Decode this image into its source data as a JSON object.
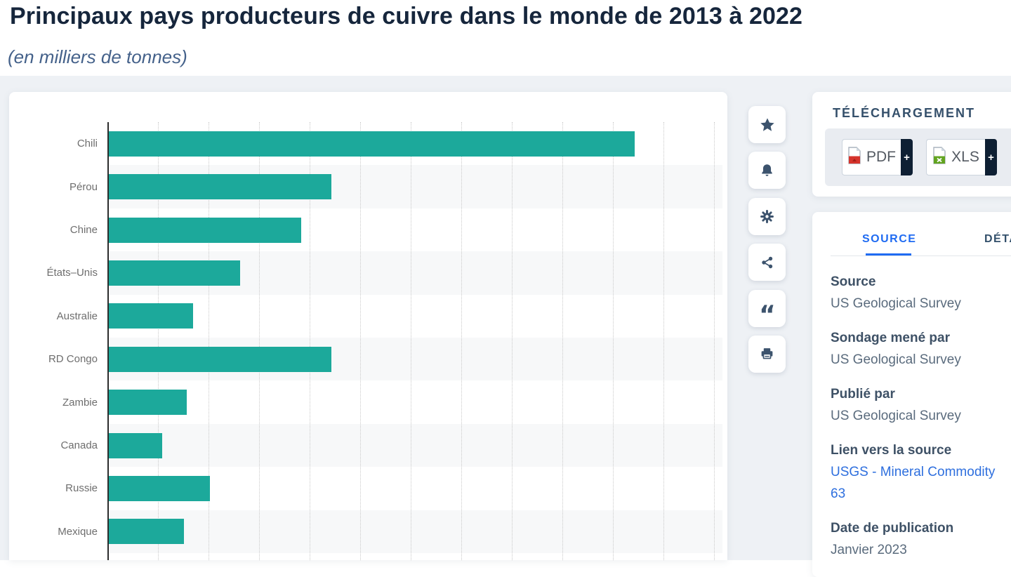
{
  "page": {
    "title": "Principaux pays producteurs de cuivre dans le monde de 2013 à 2022",
    "subtitle": "(en milliers de tonnes)"
  },
  "chart_data": {
    "type": "bar",
    "orientation": "horizontal",
    "title": "Principaux pays producteurs de cuivre dans le monde de 2013 à 2022",
    "subtitle": "(en milliers de tonnes)",
    "unit": "milliers de tonnes",
    "categories": [
      "Chili",
      "Pérou",
      "Chine",
      "États–Unis",
      "Australie",
      "RD Congo",
      "Zambie",
      "Canada",
      "Russie",
      "Mexique"
    ],
    "values": [
      5200,
      2200,
      1900,
      1300,
      830,
      2200,
      770,
      530,
      1000,
      740
    ],
    "xlabel": "",
    "ylabel": "",
    "xlim": [
      0,
      6100
    ],
    "gridline_step": 500,
    "grid": true,
    "legend": false,
    "bar_color": "#1CA99B",
    "row_stripe_color": "#f7f8f9"
  },
  "toolbar": {
    "items": [
      {
        "icon": "star-icon",
        "name": "favorite"
      },
      {
        "icon": "bell-icon",
        "name": "alert"
      },
      {
        "icon": "gear-icon",
        "name": "settings"
      },
      {
        "icon": "share-icon",
        "name": "share"
      },
      {
        "icon": "quote-icon",
        "name": "cite"
      },
      {
        "icon": "printer-icon",
        "name": "print"
      }
    ]
  },
  "download": {
    "heading": "TÉLÉCHARGEMENT",
    "buttons": [
      {
        "label": "PDF",
        "icon": "pdf-file-icon",
        "plus": "+"
      },
      {
        "label": "XLS",
        "icon": "xls-file-icon",
        "plus": "+"
      }
    ]
  },
  "panel": {
    "tabs": [
      {
        "label": "SOURCE",
        "active": true
      },
      {
        "label": "DÉTAILS",
        "active": false
      }
    ],
    "fields": [
      {
        "label": "Source",
        "value": "US Geological Survey"
      },
      {
        "label": "Sondage mené par",
        "value": "US Geological Survey"
      },
      {
        "label": "Publié par",
        "value": "US Geological Survey"
      },
      {
        "label": "Lien vers la source",
        "value": "USGS - Mineral Commodity 63",
        "is_link": true
      },
      {
        "label": "Date de publication",
        "value": "Janvier 2023"
      }
    ]
  },
  "colors": {
    "accent_teal": "#1CA99B",
    "tab_active_blue": "#1F6BF2",
    "link_blue": "#2E6FDE",
    "title_navy": "#16263C",
    "plus_block_navy": "#0E1F33",
    "pdf_red": "#D6342C",
    "xls_green": "#62A420"
  }
}
